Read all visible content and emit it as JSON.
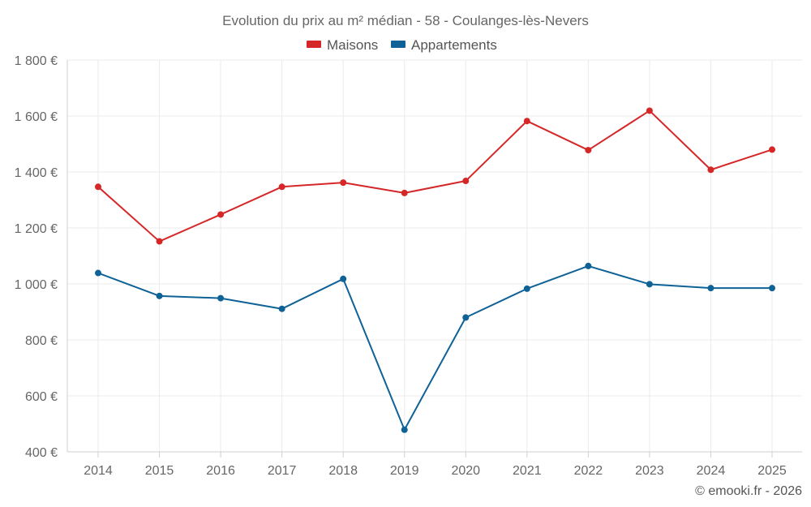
{
  "chart_data": {
    "type": "line",
    "title": "Evolution du prix au m² médian - 58 - Coulanges-lès-Nevers",
    "categories": [
      "2014",
      "2015",
      "2016",
      "2017",
      "2018",
      "2019",
      "2020",
      "2021",
      "2022",
      "2023",
      "2024",
      "2025"
    ],
    "series": [
      {
        "name": "Maisons",
        "color": "#d62728",
        "values": [
          1347,
          1152,
          1248,
          1347,
          1362,
          1325,
          1368,
          1582,
          1478,
          1619,
          1408,
          1480
        ]
      },
      {
        "name": "Appartements",
        "color": "#0f6296",
        "values": [
          1039,
          957,
          949,
          911,
          1018,
          479,
          880,
          983,
          1064,
          999,
          985,
          985
        ]
      }
    ],
    "ylim": [
      400,
      1800
    ],
    "yticks": [
      400,
      600,
      800,
      1000,
      1200,
      1400,
      1600,
      1800
    ],
    "ytick_labels": [
      "400 €",
      "600 €",
      "800 €",
      "1 000 €",
      "1 200 €",
      "1 400 €",
      "1 600 €",
      "1 800 €"
    ],
    "grid": true,
    "legend_position": "top-center",
    "xlabel": "",
    "ylabel": ""
  },
  "credit": "© emooki.fr - 2026"
}
